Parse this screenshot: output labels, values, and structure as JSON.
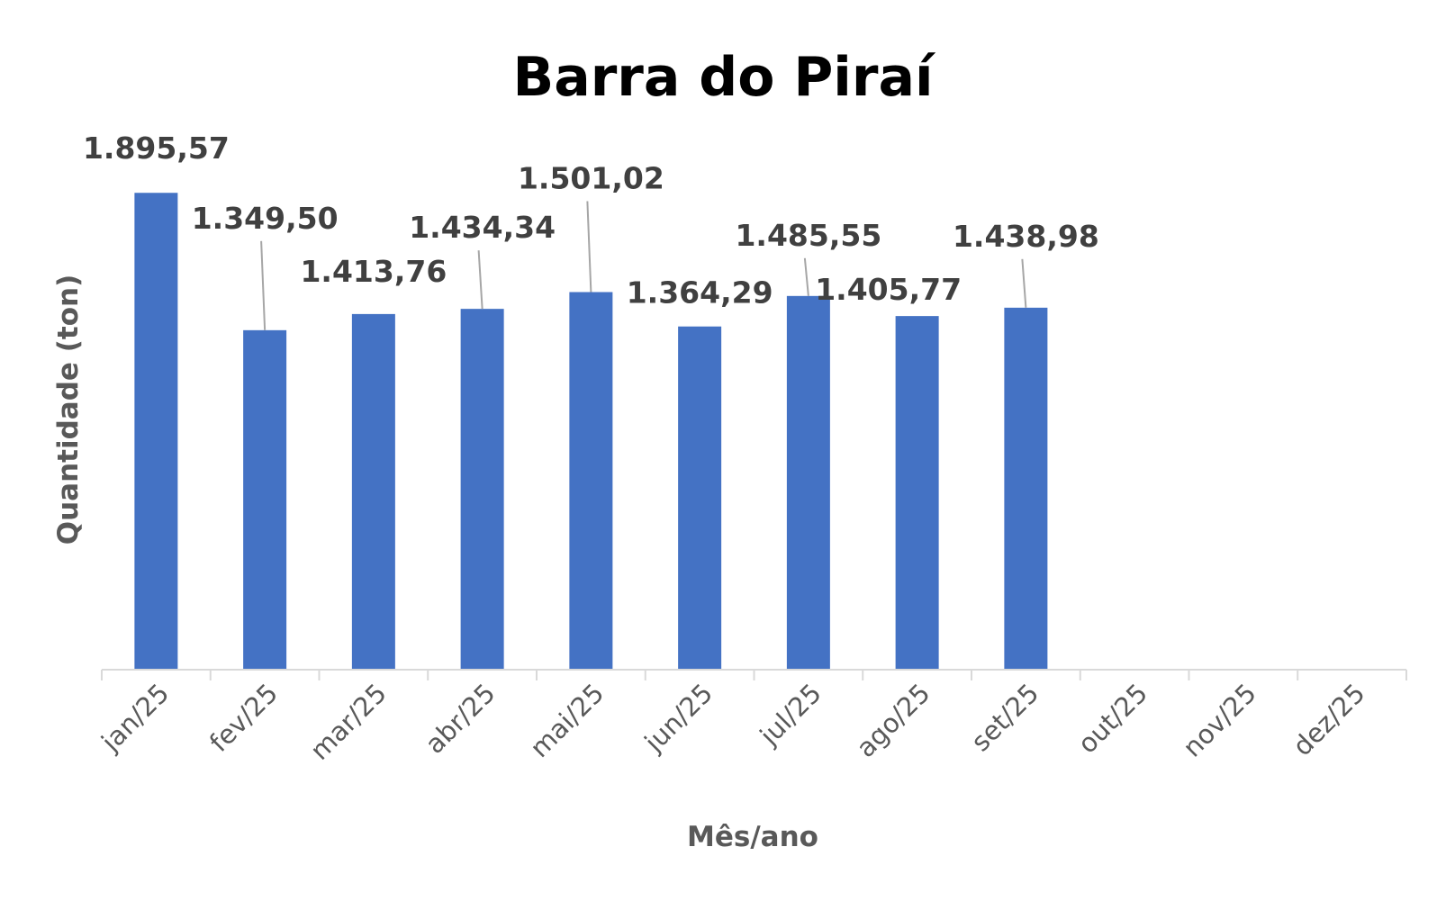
{
  "chart_data": {
    "type": "bar",
    "title": "Barra do Piraí",
    "xlabel": "Mês/ano",
    "ylabel": "Quantidade (ton)",
    "categories": [
      "jan/25",
      "fev/25",
      "mar/25",
      "abr/25",
      "mai/25",
      "jun/25",
      "jul/25",
      "ago/25",
      "set/25",
      "out/25",
      "nov/25",
      "dez/25"
    ],
    "values": [
      1895.57,
      1349.5,
      1413.76,
      1434.34,
      1501.02,
      1364.29,
      1485.55,
      1405.77,
      1438.98,
      null,
      null,
      null
    ],
    "data_labels": [
      "1.895,57",
      "1.349,50",
      "1.413,76",
      "1.434,34",
      "1.501,02",
      "1.364,29",
      "1.485,55",
      "1.405,77",
      "1.438,98",
      "",
      "",
      ""
    ],
    "ylim": [
      0,
      1900
    ],
    "bar_color": "#4472C4",
    "grid": false,
    "legend": "none"
  }
}
